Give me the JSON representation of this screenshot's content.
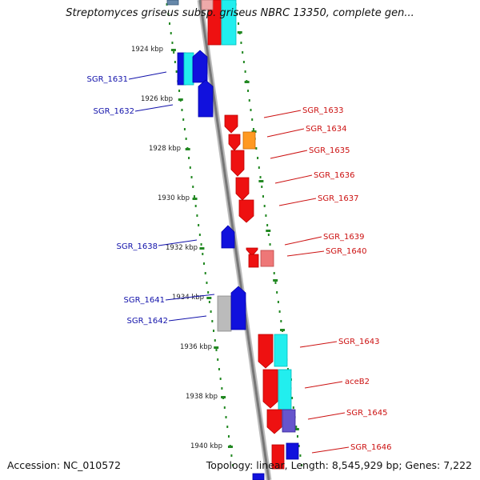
{
  "title": "Streptomyces griseus subsp. griseus NBRC 13350, complete gen...",
  "footer": {
    "accession": "Accession: NC_010572",
    "topology": "Topology: linear, Length: 8,545,929 bp; Genes: 7,222"
  },
  "colors": {
    "forward_gene": "#ee1111",
    "reverse_gene": "#1111dd",
    "cyan_track": "#22eeee",
    "orange_gene": "#ff9922",
    "pink_gene": "#ee7777",
    "grey_gene": "#bbbbbb",
    "purple_gene": "#6655cc",
    "tick": "#228822",
    "backbone": "#888888",
    "left_label": "#1111aa",
    "right_label": "#cc1111"
  },
  "kbp_ticks": [
    "1924 kbp",
    "1926 kbp",
    "1928 kbp",
    "1930 kbp",
    "1932 kbp",
    "1934 kbp",
    "1936 kbp",
    "1938 kbp",
    "1940 kbp"
  ],
  "left_genes": [
    "SGR_1631",
    "SGR_1632",
    "SGR_1638",
    "SGR_1641",
    "SGR_1642"
  ],
  "right_genes": [
    "SGR_1633",
    "SGR_1634",
    "SGR_1635",
    "SGR_1636",
    "SGR_1637",
    "SGR_1639",
    "SGR_1640",
    "SGR_1643",
    "aceB2",
    "SGR_1645",
    "SGR_1646"
  ]
}
